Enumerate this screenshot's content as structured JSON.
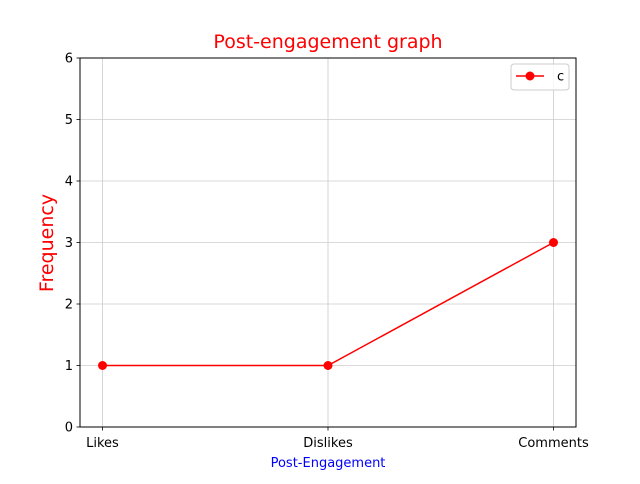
{
  "chart_data": {
    "type": "line",
    "title": "Post-engagement graph",
    "xlabel": "Post-Engagement",
    "ylabel": "Frequency",
    "categories": [
      "Likes",
      "Dislikes",
      "Comments"
    ],
    "series": [
      {
        "name": "c",
        "values": [
          1,
          1,
          3
        ],
        "color": "#ff0000",
        "marker": "circle"
      }
    ],
    "ylim": [
      0,
      6
    ],
    "yticks": [
      0,
      1,
      2,
      3,
      4,
      5,
      6
    ],
    "grid": true,
    "legend_position": "top-right",
    "colors": {
      "title": "#ff0000",
      "xlabel": "#0000ff",
      "ylabel": "#ff0000",
      "grid": "#cccccc",
      "axes": "#000000"
    }
  }
}
